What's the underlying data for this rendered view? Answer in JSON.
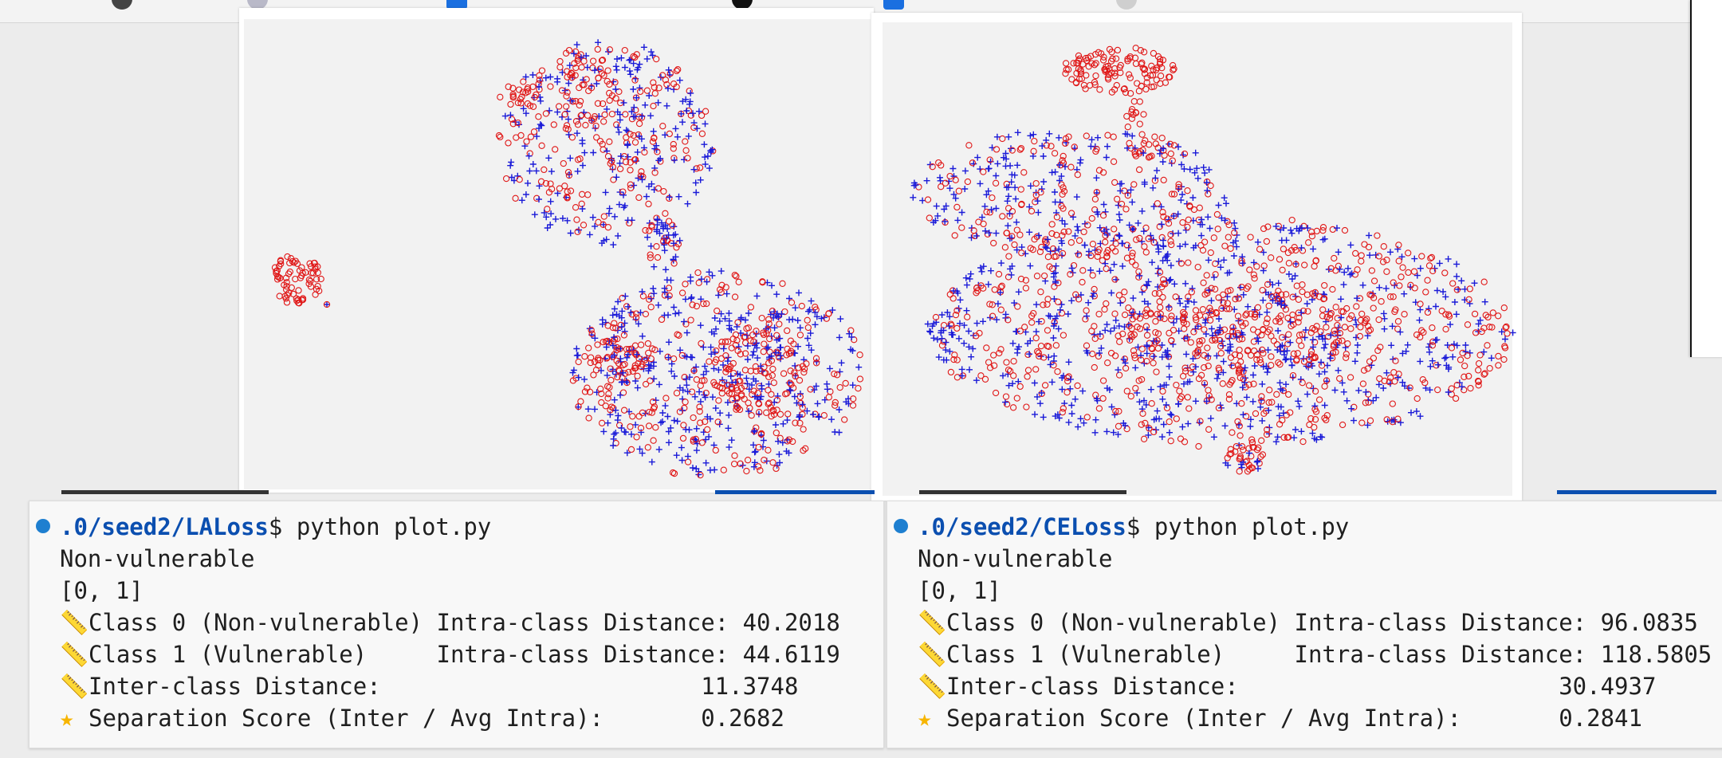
{
  "colors": {
    "class0_marker": "#e01818",
    "class1_marker": "#1a1ad8",
    "path_text": "#0b4fb0",
    "prompt_dot": "#1e7fd0",
    "star": "#f7b500"
  },
  "plots": {
    "laloss": {
      "markers": {
        "class0": "circle",
        "class1": "plus"
      }
    },
    "celoss": {
      "markers": {
        "class0": "circle",
        "class1": "plus"
      }
    }
  },
  "terminal_left": {
    "path": ".0/seed2/LALoss",
    "command": "$ python plot.py",
    "label": "Non-vulnerable",
    "classes": "[0, 1]",
    "line_class0": "Class 0 (Non-vulnerable) Intra-class Distance: 40.2018",
    "line_class1": "Class 1 (Vulnerable)     Intra-class Distance: 44.6119",
    "line_inter": "Inter-class Distance:                       11.3748",
    "line_score": "Separation Score (Inter / Avg Intra):       0.2682",
    "icon_ruler": "ruler-icon",
    "icon_star": "star-icon"
  },
  "terminal_right": {
    "path": ".0/seed2/CELoss",
    "command": "$ python plot.py",
    "label": "Non-vulnerable",
    "classes": "[0, 1]",
    "line_class0": "Class 0 (Non-vulnerable) Intra-class Distance: 96.0835",
    "line_class1": "Class 1 (Vulnerable)     Intra-class Distance: 118.5805",
    "line_inter": "Inter-class Distance:                       30.4937",
    "line_score": "Separation Score (Inter / Avg Intra):       0.2841",
    "icon_ruler": "ruler-icon",
    "icon_star": "star-icon"
  }
}
